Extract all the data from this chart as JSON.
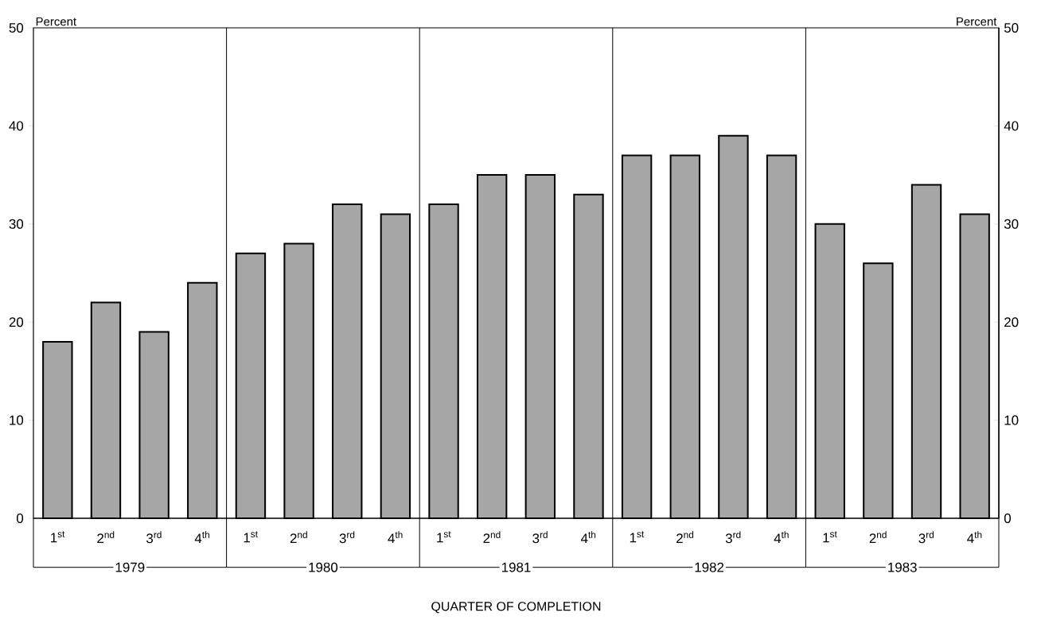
{
  "chart_data": {
    "type": "bar",
    "xlabel": "QUARTER OF COMPLETION",
    "ylabel": "Percent",
    "y2label": "Percent",
    "categories": [
      "1$^{st}$",
      "2$^{nd}$",
      "3$^{rd}$",
      "4$^{th}$",
      "1$^{st}$",
      "2$^{nd}$",
      "3$^{rd}$",
      "4$^{th}$",
      "1$^{st}$",
      "2$^{nd}$",
      "3$^{rd}$",
      "4$^{th}$",
      "1$^{st}$",
      "2$^{nd}$",
      "3$^{rd}$",
      "4$^{th}$",
      "1$^{st}$",
      "2$^{nd}$",
      "3$^{rd}$",
      "4$^{th}$"
    ],
    "values": [
      18,
      22,
      19,
      24,
      27,
      28,
      32,
      31,
      32,
      35,
      35,
      33,
      37,
      37,
      39,
      37,
      30,
      26,
      34,
      31
    ],
    "color": "#a6a6a6",
    "ylim": [
      0,
      50
    ],
    "yticks": [
      0,
      10,
      20,
      30,
      40,
      50
    ],
    "y2lim": [
      0,
      50
    ],
    "y2ticks": [
      0,
      10,
      20,
      30,
      40,
      50
    ],
    "annotations": [
      "1979",
      "1980",
      "1981",
      "1982",
      "1983"
    ]
  }
}
